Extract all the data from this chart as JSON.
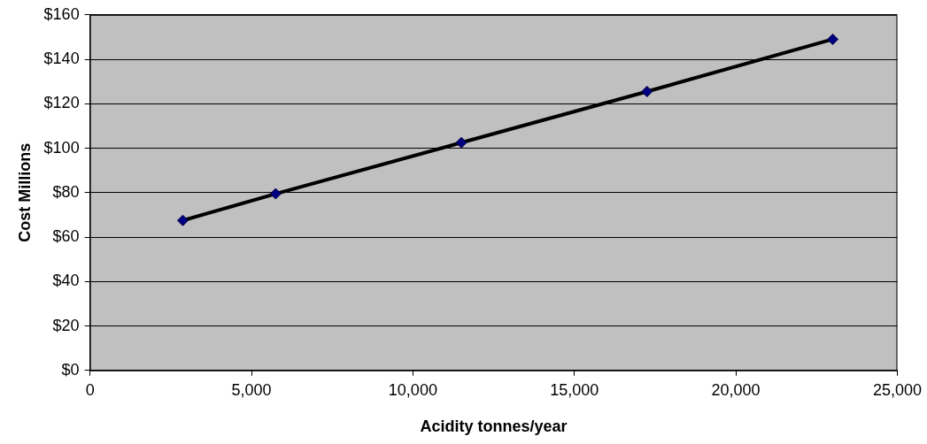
{
  "chart_data": {
    "type": "line",
    "xlabel": "Acidity tonnes/year",
    "ylabel": "Cost Millions",
    "x": [
      2875,
      5750,
      11500,
      17250,
      23000
    ],
    "series": [
      {
        "color": "#000000",
        "values": [
          67.5,
          79.5,
          102.5,
          125.5,
          149
        ]
      }
    ],
    "marker": "diamond",
    "line_style": "solid",
    "xlim": [
      0,
      25000
    ],
    "xticks": [
      0,
      {
        "value": 5000,
        "label": "5,000"
      },
      {
        "value": 10000,
        "label": "10,000"
      },
      {
        "value": 15000,
        "label": "15,000"
      },
      {
        "value": 20000,
        "label": "20,000"
      },
      {
        "value": 25000,
        "label": "25,000"
      }
    ],
    "ylim": [
      0,
      160
    ],
    "yticks": [
      {
        "value": 0,
        "label": "$0"
      },
      {
        "value": 20,
        "label": "$20"
      },
      {
        "value": 40,
        "label": "$40"
      },
      {
        "value": 60,
        "label": "$60"
      },
      {
        "value": 80,
        "label": "$80"
      },
      {
        "value": 100,
        "label": "$100"
      },
      {
        "value": 120,
        "label": "$120"
      },
      {
        "value": 140,
        "label": "$140"
      },
      {
        "value": 160,
        "label": "$160"
      }
    ],
    "grid": "y",
    "legend": false
  }
}
